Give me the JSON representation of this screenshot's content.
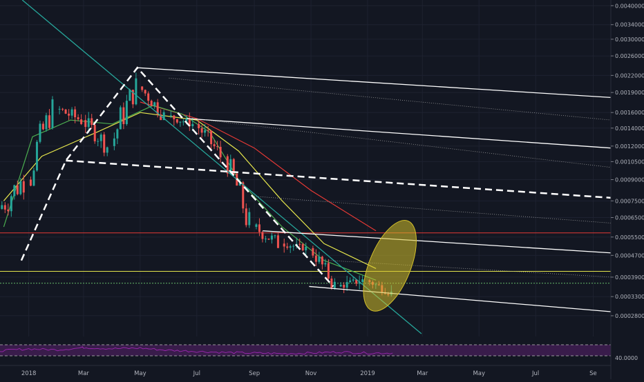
{
  "chart_data": {
    "type": "candlestick",
    "y_axis": {
      "scale": "log",
      "position": "right",
      "ticks": [
        "0.00400000",
        "0.00340000",
        "0.00300000",
        "0.00260000",
        "0.00220000",
        "0.00190000",
        "0.00160000",
        "0.00140000",
        "0.00120000",
        "0.00105000",
        "0.00090000",
        "0.00075000",
        "0.00065000",
        "0.00055000",
        "0.00047000",
        "0.00039000",
        "0.00033000",
        "0.00028000"
      ],
      "range": [
        0.00024,
        0.0042
      ]
    },
    "x_axis": {
      "type": "time",
      "ticks": [
        "2018",
        "Mar",
        "May",
        "Jul",
        "Sep",
        "Nov",
        "2019",
        "Mar",
        "May",
        "Jul",
        "Se"
      ],
      "range": [
        "2017-12-01",
        "2019-09-20"
      ]
    },
    "grid": true,
    "candles_monthly_approx": [
      {
        "date": "2017-12",
        "open": 0.0007,
        "high": 0.001,
        "low": 0.0004,
        "close": 0.0009
      },
      {
        "date": "2018-01",
        "open": 0.0009,
        "high": 0.0019,
        "low": 0.00085,
        "close": 0.00165
      },
      {
        "date": "2018-02",
        "open": 0.00165,
        "high": 0.00185,
        "low": 0.0013,
        "close": 0.0015
      },
      {
        "date": "2018-03",
        "open": 0.0015,
        "high": 0.0017,
        "low": 0.0011,
        "close": 0.0012
      },
      {
        "date": "2018-04",
        "open": 0.0012,
        "high": 0.0024,
        "low": 0.00115,
        "close": 0.002
      },
      {
        "date": "2018-05",
        "open": 0.002,
        "high": 0.00215,
        "low": 0.0015,
        "close": 0.00155
      },
      {
        "date": "2018-06",
        "open": 0.00155,
        "high": 0.00165,
        "low": 0.00135,
        "close": 0.00145
      },
      {
        "date": "2018-07",
        "open": 0.00145,
        "high": 0.0015,
        "low": 0.00095,
        "close": 0.0011
      },
      {
        "date": "2018-08",
        "open": 0.0011,
        "high": 0.00112,
        "low": 0.00055,
        "close": 0.0006
      },
      {
        "date": "2018-09",
        "open": 0.0006,
        "high": 0.0007,
        "low": 0.0005,
        "close": 0.00052
      },
      {
        "date": "2018-10",
        "open": 0.00052,
        "high": 0.00055,
        "low": 0.00047,
        "close": 0.0005
      },
      {
        "date": "2018-11",
        "open": 0.0005,
        "high": 0.00052,
        "low": 0.00035,
        "close": 0.00036
      },
      {
        "date": "2018-12",
        "open": 0.00036,
        "high": 0.00041,
        "low": 0.00034,
        "close": 0.00038
      },
      {
        "date": "2019-01",
        "open": 0.00038,
        "high": 0.0004,
        "low": 0.00033,
        "close": 0.00034
      }
    ],
    "horizontal_levels": [
      {
        "price": 0.00057,
        "color": "#e53935",
        "style": "solid"
      },
      {
        "price": 0.00041,
        "color": "#e5e54c",
        "style": "solid"
      },
      {
        "price": 0.00037,
        "color": "#66bb6a",
        "style": "dotted"
      }
    ],
    "moving_averages": [
      {
        "color": "#e53935",
        "points": [
          [
            "2018-05-01",
            0.00175
          ],
          [
            "2018-07-01",
            0.00152
          ],
          [
            "2018-09-01",
            0.00118
          ],
          [
            "2018-11-01",
            0.00082
          ],
          [
            "2019-01-10",
            0.00058
          ]
        ]
      },
      {
        "color": "#e5e54c",
        "points": [
          [
            "2017-12-05",
            0.00075
          ],
          [
            "2018-01-15",
            0.0011
          ],
          [
            "2018-03-15",
            0.00135
          ],
          [
            "2018-05-01",
            0.0016
          ],
          [
            "2018-07-01",
            0.0015
          ],
          [
            "2018-08-15",
            0.00115
          ],
          [
            "2018-10-01",
            0.00075
          ],
          [
            "2018-11-15",
            0.00052
          ],
          [
            "2019-01-10",
            0.00042
          ]
        ]
      },
      {
        "color": "#4caf50",
        "points": [
          [
            "2017-12-05",
            0.0006
          ],
          [
            "2018-01-05",
            0.0013
          ],
          [
            "2018-02-15",
            0.0015
          ],
          [
            "2018-04-01",
            0.00145
          ],
          [
            "2018-05-15",
            0.0017
          ],
          [
            "2018-06-15",
            0.00158
          ],
          [
            "2018-07-15",
            0.00135
          ],
          [
            "2018-08-15",
            0.0009
          ],
          [
            "2018-10-01",
            0.0006
          ],
          [
            "2018-11-15",
            0.00045
          ],
          [
            "2019-01-10",
            0.00038
          ]
        ]
      }
    ],
    "trend_lines": [
      {
        "color": "#26a69a",
        "style": "solid",
        "from": [
          "2017-12-25",
          0.0042
        ],
        "to": [
          "2019-02-28",
          0.00024
        ]
      },
      {
        "color": "#ffffff",
        "style": "solid",
        "from": [
          "2018-04-28",
          0.00235
        ],
        "to": [
          "2019-09-20",
          0.00182
        ]
      },
      {
        "color": "#ffffff",
        "style": "solid",
        "from": [
          "2018-06-20",
          0.00152
        ],
        "to": [
          "2019-09-20",
          0.00118
        ]
      },
      {
        "color": "#ffffff",
        "style": "solid",
        "from": [
          "2018-09-10",
          0.00058
        ],
        "to": [
          "2019-09-20",
          0.00048
        ]
      },
      {
        "color": "#ffffff",
        "style": "solid",
        "from": [
          "2018-10-30",
          0.00036
        ],
        "to": [
          "2019-09-20",
          0.00029
        ]
      },
      {
        "color": "#ffffff",
        "style": "dashed",
        "from": [
          "2018-02-10",
          0.00106
        ],
        "to": [
          "2019-09-20",
          0.00077
        ]
      },
      {
        "color": "#9e9e9e",
        "style": "dotted",
        "from": [
          "2018-06-01",
          0.00215
        ],
        "to": [
          "2019-09-20",
          0.0015
        ]
      },
      {
        "color": "#9e9e9e",
        "style": "dotted",
        "from": [
          "2018-07-10",
          0.0015
        ],
        "to": [
          "2019-09-20",
          0.001
        ]
      },
      {
        "color": "#9e9e9e",
        "style": "dotted",
        "from": [
          "2018-09-01",
          0.00078
        ],
        "to": [
          "2019-09-20",
          0.00062
        ]
      },
      {
        "color": "#9e9e9e",
        "style": "dotted",
        "from": [
          "2018-11-20",
          0.00045
        ],
        "to": [
          "2019-09-20",
          0.00039
        ]
      }
    ],
    "zigzag_dashed": [
      [
        "2017-12-24",
        0.00045
      ],
      [
        "2018-02-10",
        0.00106
      ],
      [
        "2018-04-28",
        0.00235
      ],
      [
        "2018-11-25",
        0.00036
      ]
    ],
    "highlight_ellipse": {
      "color": "#d4c02a",
      "center": [
        "2019-01-25",
        0.00043
      ],
      "note": "highlighted zone"
    },
    "rsi_panel": {
      "color": "#9c27b0",
      "value_label": "40.0000",
      "bands": [
        70,
        30
      ],
      "values": [
        48,
        55,
        52,
        60,
        56,
        58,
        50,
        46,
        42,
        40,
        38,
        40,
        44,
        40
      ]
    }
  }
}
